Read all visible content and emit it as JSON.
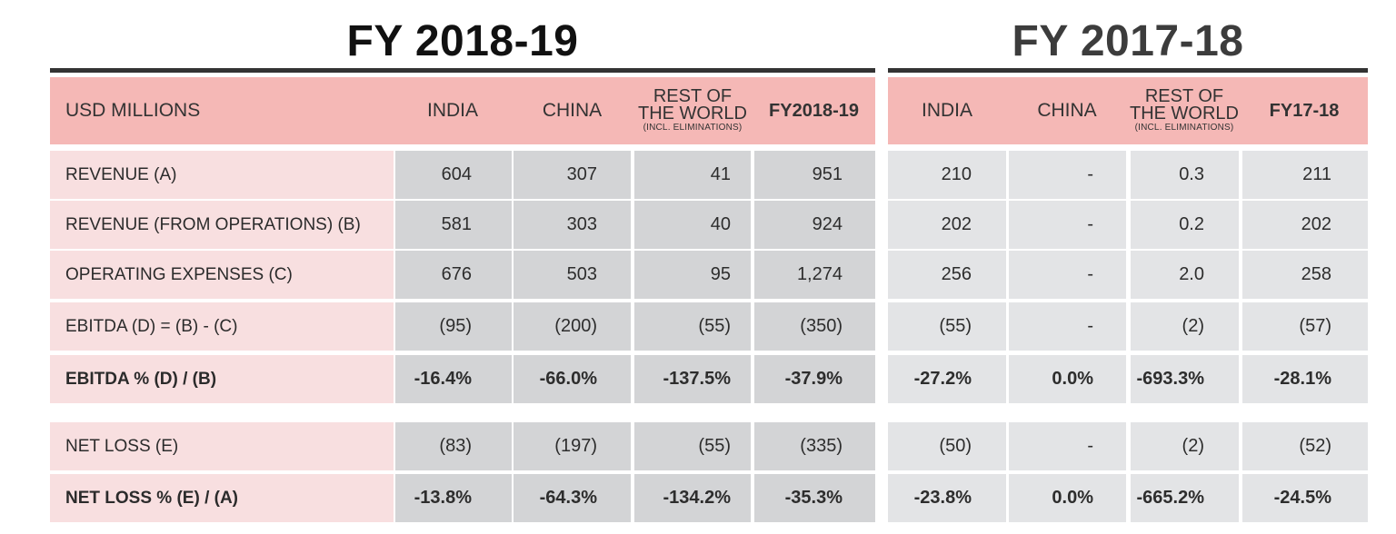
{
  "titles": {
    "fy2018_19": "FY 2018-19",
    "fy2017_18": "FY 2017-18"
  },
  "header": {
    "label": "USD MILLIONS",
    "fy18_19": {
      "india": "INDIA",
      "china": "CHINA",
      "row_line1": "REST OF",
      "row_line2": "THE WORLD",
      "row_note": "(INCL. ELIMINATIONS)",
      "total": "FY2018-19"
    },
    "fy17_18": {
      "india": "INDIA",
      "china": "CHINA",
      "row_line1": "REST OF",
      "row_line2": "THE WORLD",
      "row_note": "(INCL. ELIMINATIONS)",
      "total": "FY17-18"
    }
  },
  "rows": [
    {
      "label": "REVENUE (A)",
      "fy18_19": [
        "604",
        "307",
        "41",
        "951"
      ],
      "fy17_18": [
        "210",
        "-",
        "0.3",
        "211"
      ]
    },
    {
      "label": "REVENUE (FROM OPERATIONS) (B)",
      "fy18_19": [
        "581",
        "303",
        "40",
        "924"
      ],
      "fy17_18": [
        "202",
        "-",
        "0.2",
        "202"
      ]
    },
    {
      "label": "OPERATING EXPENSES (C)",
      "fy18_19": [
        "676",
        "503",
        "95",
        "1,274"
      ],
      "fy17_18": [
        "256",
        "-",
        "2.0",
        "258"
      ]
    },
    {
      "label": "EBITDA (D) = (B) - (C)",
      "fy18_19": [
        "(95)",
        "(200)",
        "(55)",
        "(350)"
      ],
      "fy17_18": [
        "(55)",
        "-",
        "(2)",
        "(57)"
      ]
    },
    {
      "label": "EBITDA %  (D) / (B)",
      "fy18_19": [
        "-16.4%",
        "-66.0%",
        "-137.5%",
        "-37.9%"
      ],
      "fy17_18": [
        "-27.2%",
        "0.0%",
        "-693.3%",
        "-28.1%"
      ]
    },
    {
      "label": "NET LOSS (E)",
      "fy18_19": [
        "(83)",
        "(197)",
        "(55)",
        "(335)"
      ],
      "fy17_18": [
        "(50)",
        "-",
        "(2)",
        "(52)"
      ]
    },
    {
      "label": "NET LOSS % (E) / (A)",
      "fy18_19": [
        "-13.8%",
        "-64.3%",
        "-134.2%",
        "-35.3%"
      ],
      "fy17_18": [
        "-23.8%",
        "0.0%",
        "-665.2%",
        "-24.5%"
      ]
    }
  ],
  "colors": {
    "header_bg": "#f5b8b6",
    "label_bg": "#f8dfe0",
    "fy18_cell_bg": "#d3d4d6",
    "fy17_cell_bg": "#e3e4e6",
    "rule": "#333333"
  }
}
